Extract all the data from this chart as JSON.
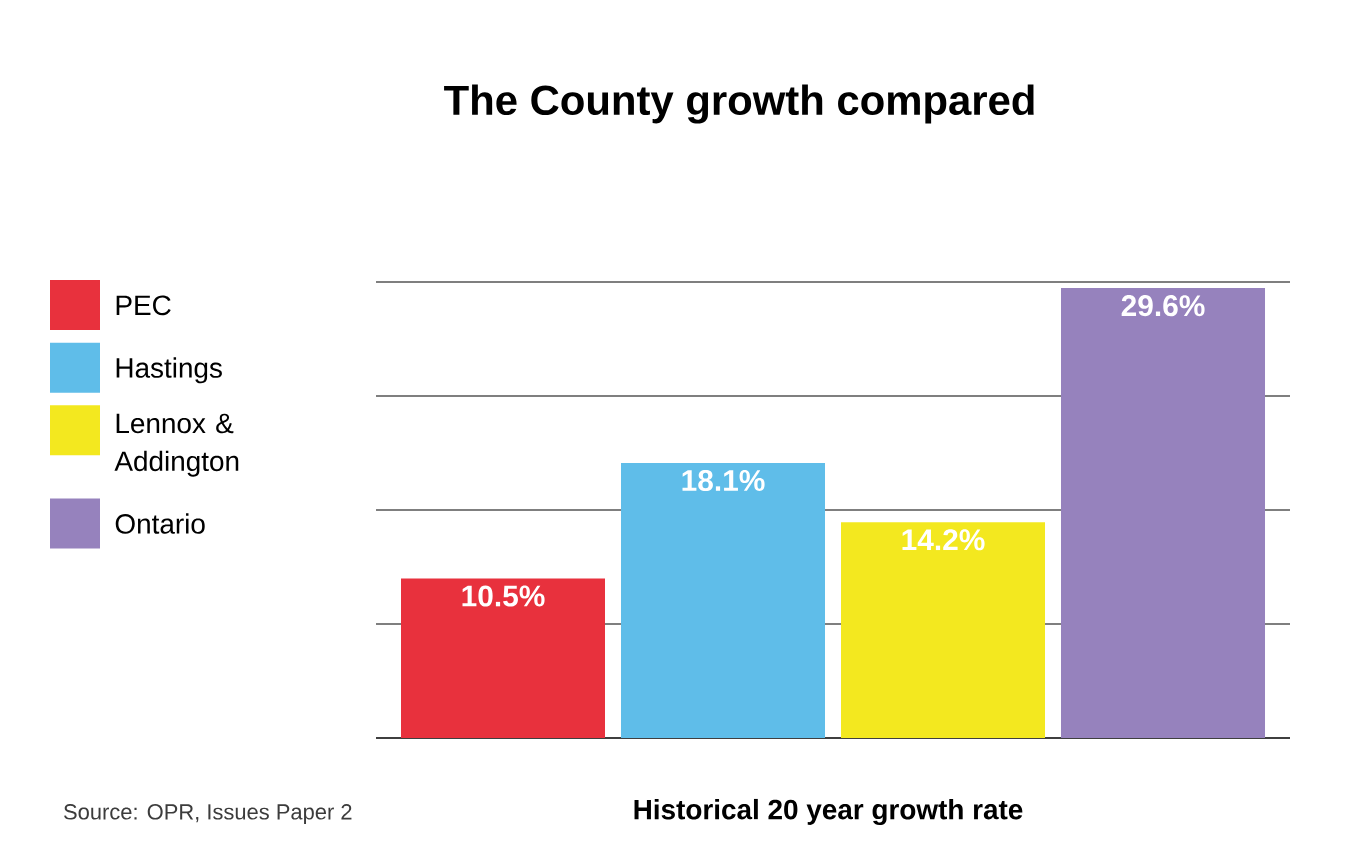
{
  "chart_data": {
    "type": "bar",
    "title": "The County growth compared",
    "xlabel": "Historical 20 year growth rate",
    "annotations": [
      "Source: OPR, Issues Paper 2"
    ],
    "categories": [
      null
    ],
    "series": [
      {
        "name": "PEC",
        "color": "#e8313d",
        "values": [
          10.5
        ],
        "value_labels": [
          "10.5%"
        ]
      },
      {
        "name": "Hastings",
        "color": "#5fbde9",
        "values": [
          18.1
        ],
        "value_labels": [
          "18.1%"
        ]
      },
      {
        "name": "Lennox & Addington",
        "color": "#f3e81f",
        "values": [
          14.2
        ],
        "value_labels": [
          "14.2%"
        ]
      },
      {
        "name": "Ontario",
        "color": "#9682bd",
        "values": [
          29.6
        ],
        "value_labels": [
          "29.6%"
        ]
      }
    ],
    "ylim": [
      0,
      30
    ],
    "tick_labels": false,
    "grid": "y",
    "legend": "left"
  }
}
